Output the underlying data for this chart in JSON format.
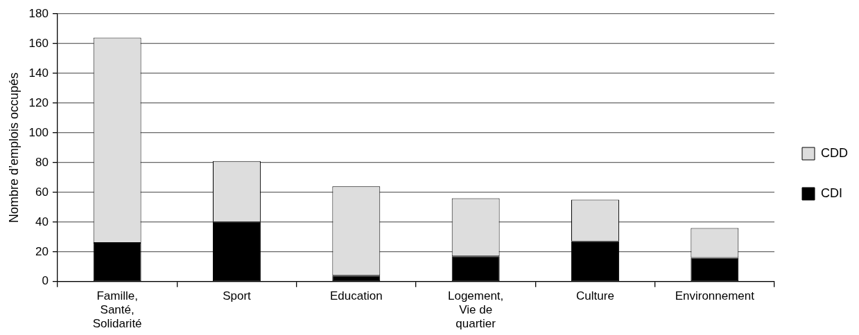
{
  "chart_data": {
    "type": "bar",
    "stacked": true,
    "ylabel": "Nombre d’emplois occupés",
    "categories": [
      "Famille, Santé, Solidarité",
      "Sport",
      "Education",
      "Logement, Vie de quartier",
      "Culture",
      "Environnement"
    ],
    "series": [
      {
        "name": "CDI",
        "color": "#000000",
        "values": [
          26,
          40,
          4,
          17,
          27,
          16
        ]
      },
      {
        "name": "CDD",
        "color": "#dddddd",
        "values": [
          138,
          41,
          60,
          39,
          28,
          20
        ]
      }
    ],
    "ylim": [
      0,
      180
    ],
    "yticks": [
      0,
      20,
      40,
      60,
      80,
      100,
      120,
      140,
      160,
      180
    ],
    "grid": "y",
    "legend": "right"
  }
}
